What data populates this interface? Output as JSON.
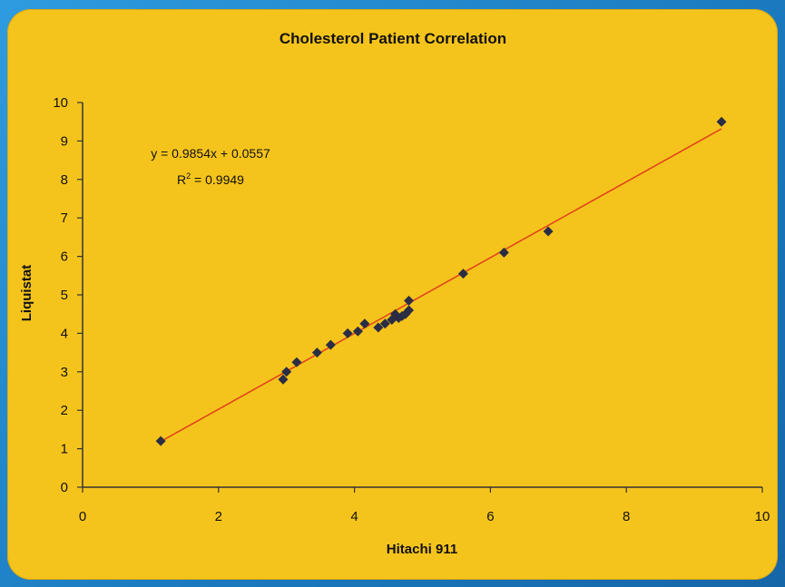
{
  "chart_data": {
    "type": "scatter",
    "title": "Cholesterol Patient Correlation",
    "xlabel": "Hitachi 911",
    "ylabel": "Liquistat",
    "xlim": [
      0,
      10
    ],
    "ylim": [
      0,
      10
    ],
    "x_ticks": [
      "0",
      "2",
      "4",
      "6",
      "8",
      "10"
    ],
    "y_ticks": [
      "0",
      "1",
      "2",
      "3",
      "4",
      "5",
      "6",
      "7",
      "8",
      "9",
      "10"
    ],
    "grid": false,
    "legend": "none",
    "colors": {
      "point": "#2b2d44",
      "trendline": "#e2461b",
      "axis": "#333333"
    },
    "series": [
      {
        "points": [
          [
            1.15,
            1.2
          ],
          [
            2.95,
            2.8
          ],
          [
            3.0,
            3.0
          ],
          [
            3.15,
            3.25
          ],
          [
            3.45,
            3.5
          ],
          [
            3.65,
            3.7
          ],
          [
            3.9,
            4.0
          ],
          [
            4.05,
            4.05
          ],
          [
            4.15,
            4.25
          ],
          [
            4.35,
            4.15
          ],
          [
            4.45,
            4.25
          ],
          [
            4.55,
            4.35
          ],
          [
            4.6,
            4.5
          ],
          [
            4.65,
            4.4
          ],
          [
            4.7,
            4.45
          ],
          [
            4.75,
            4.5
          ],
          [
            4.8,
            4.6
          ],
          [
            4.8,
            4.85
          ],
          [
            5.6,
            5.55
          ],
          [
            6.2,
            6.1
          ],
          [
            6.85,
            6.65
          ],
          [
            9.4,
            9.5
          ]
        ]
      }
    ],
    "trendline": {
      "slope": 0.9854,
      "intercept": 0.0557,
      "x_range": [
        1.15,
        9.4
      ],
      "equation": "y = 0.9854x + 0.0557",
      "r_squared_prefix": "R",
      "r_squared_exp": "2",
      "r_squared_value": " = 0.9949"
    }
  }
}
